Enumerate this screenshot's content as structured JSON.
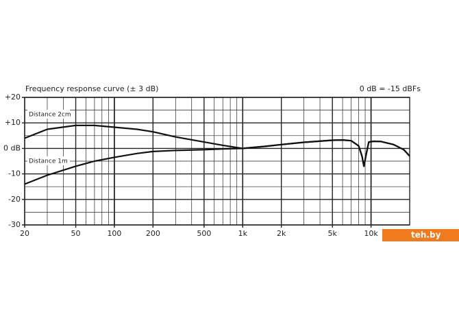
{
  "chart_data": {
    "type": "line",
    "title": "Frequency response curve (± 3 dB)",
    "subtitle": "0 dB = -15 dBFs",
    "watermark": "teh.by",
    "log_x": true,
    "grid": true,
    "xlim": [
      20,
      20000
    ],
    "ylim": [
      -30,
      20
    ],
    "xticks": [
      20,
      50,
      100,
      200,
      500,
      {
        "value": 1000,
        "label": "1k"
      },
      {
        "value": 2000,
        "label": "2k"
      },
      {
        "value": 5000,
        "label": "5k"
      },
      {
        "value": 10000,
        "label": "10k"
      }
    ],
    "yticks": [
      {
        "value": 20,
        "label": "+20"
      },
      {
        "value": 10,
        "label": "+10"
      },
      {
        "value": 0,
        "label": "0 dB"
      },
      -10,
      -20,
      -30
    ],
    "x": [
      20,
      30,
      50,
      70,
      100,
      150,
      200,
      300,
      500,
      700,
      1000,
      1500,
      2000,
      3000,
      5000,
      6000,
      7000,
      8000,
      8500,
      8800,
      9200,
      9600,
      10500,
      12000,
      15000,
      18000,
      20000
    ],
    "series": [
      {
        "name": "Distance 2cm",
        "color": "#111111",
        "values": [
          4,
          7.5,
          9,
          9,
          8.3,
          7.5,
          6.5,
          4.5,
          2.5,
          1.2,
          0,
          0.8,
          1.5,
          2.4,
          3.2,
          3.3,
          3,
          1,
          -3,
          -7,
          -2,
          2.5,
          2.8,
          2.7,
          1.5,
          -0.5,
          -3
        ]
      },
      {
        "name": "Distance 1m",
        "color": "#111111",
        "values": [
          -14,
          -10.5,
          -7,
          -5,
          -3.5,
          -2,
          -1.2,
          -0.8,
          -0.5,
          -0.2,
          0,
          0.8,
          1.5,
          2.4,
          3.2,
          3.3,
          3,
          1,
          -3,
          -7,
          -2,
          2.5,
          2.8,
          2.7,
          1.5,
          -0.5,
          -3
        ]
      }
    ]
  }
}
